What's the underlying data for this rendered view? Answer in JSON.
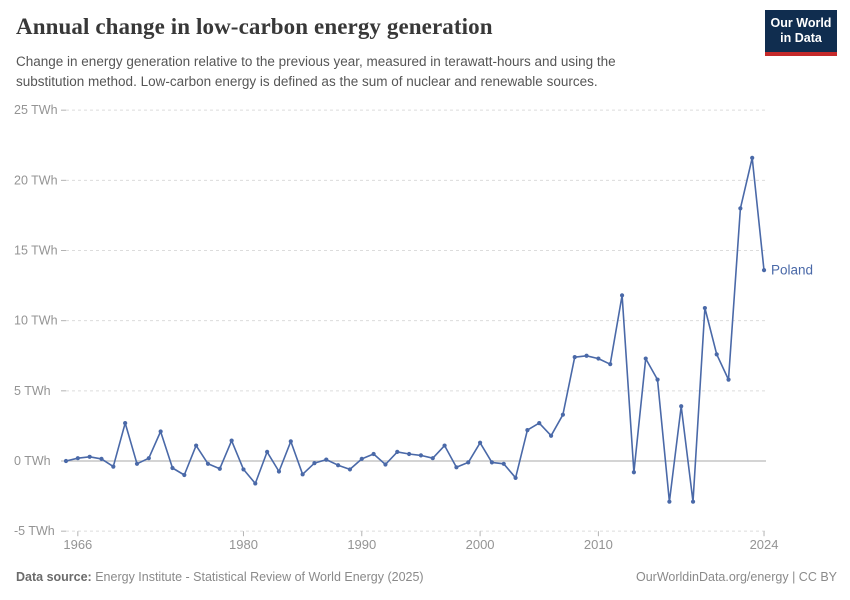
{
  "header": {
    "title": "Annual change in low-carbon energy generation",
    "subtitle": "Change in energy generation relative to the previous year, measured in terawatt-hours and using the substitution method. Low-carbon energy is defined as the sum of nuclear and renewable sources.",
    "logo": {
      "line1": "Our World",
      "line2": "in Data"
    }
  },
  "footer": {
    "source_label": "Data source:",
    "source_text": " Energy Institute - Statistical Review of World Energy (2025)",
    "right_text": "OurWorldinData.org/energy | CC BY"
  },
  "chart_data": {
    "type": "line",
    "title": "Annual change in low-carbon energy generation",
    "unit": "TWh",
    "xlim": [
      1965,
      2024
    ],
    "ylim": [
      -5,
      25
    ],
    "grid": "horizontal-dashed",
    "legend_position": "end-of-line-label",
    "x_ticks": [
      {
        "v": 1966,
        "label": "1966"
      },
      {
        "v": 1980,
        "label": "1980"
      },
      {
        "v": 1990,
        "label": "1990"
      },
      {
        "v": 2000,
        "label": "2000"
      },
      {
        "v": 2010,
        "label": "2010"
      },
      {
        "v": 2024,
        "label": "2024"
      }
    ],
    "y_ticks": [
      {
        "v": 25,
        "label": "25 TWh"
      },
      {
        "v": 20,
        "label": "20 TWh"
      },
      {
        "v": 15,
        "label": "15 TWh"
      },
      {
        "v": 10,
        "label": "10 TWh"
      },
      {
        "v": 5,
        "label": "5 TWh"
      },
      {
        "v": 0,
        "label": "0 TWh"
      },
      {
        "v": -5,
        "label": "-5 TWh"
      }
    ],
    "series": [
      {
        "name": "Poland",
        "color": "#4a69a8",
        "x": [
          1965,
          1966,
          1967,
          1968,
          1969,
          1970,
          1971,
          1972,
          1973,
          1974,
          1975,
          1976,
          1977,
          1978,
          1979,
          1980,
          1981,
          1982,
          1983,
          1984,
          1985,
          1986,
          1987,
          1988,
          1989,
          1990,
          1991,
          1992,
          1993,
          1994,
          1995,
          1996,
          1997,
          1998,
          1999,
          2000,
          2001,
          2002,
          2003,
          2004,
          2005,
          2006,
          2007,
          2008,
          2009,
          2010,
          2011,
          2012,
          2013,
          2014,
          2015,
          2016,
          2017,
          2018,
          2019,
          2020,
          2021,
          2022,
          2023,
          2024
        ],
        "values": [
          0.0,
          0.2,
          0.3,
          0.15,
          -0.4,
          2.7,
          -0.2,
          0.2,
          2.1,
          -0.5,
          -1.0,
          1.1,
          -0.2,
          -0.55,
          1.45,
          -0.6,
          -1.6,
          0.65,
          -0.75,
          1.4,
          -0.95,
          -0.15,
          0.1,
          -0.3,
          -0.6,
          0.15,
          0.5,
          -0.25,
          0.65,
          0.5,
          0.4,
          0.2,
          1.1,
          -0.45,
          -0.1,
          1.3,
          -0.1,
          -0.2,
          -1.2,
          2.2,
          2.7,
          1.8,
          3.3,
          7.4,
          7.5,
          7.3,
          6.9,
          11.8,
          -0.8,
          7.3,
          5.8,
          -2.9,
          3.9,
          -2.9,
          10.9,
          7.6,
          5.8,
          18.0,
          21.6,
          13.6
        ]
      }
    ],
    "colors": {
      "line": "#4a69a8",
      "gridline": "#dcdcdc",
      "zero_line": "#c6c6c6",
      "tick": "#b3b3b3",
      "tick_label": "#949494"
    }
  }
}
